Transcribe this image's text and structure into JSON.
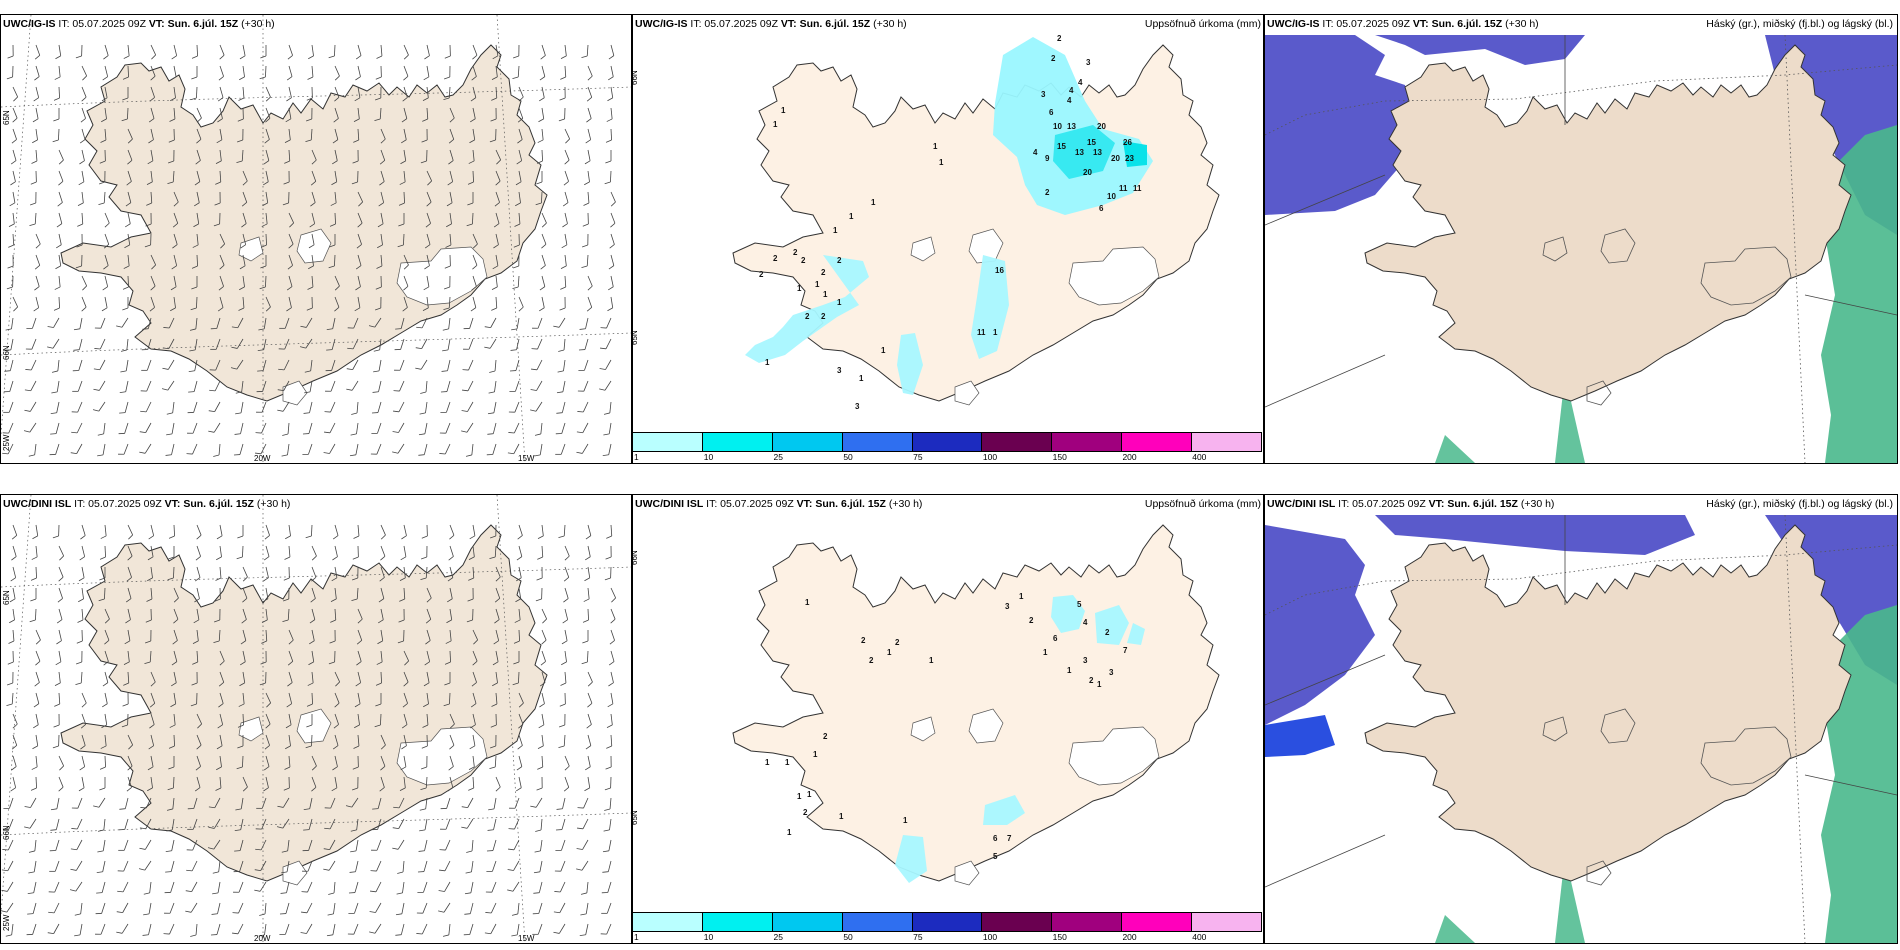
{
  "rows": [
    {
      "model": "UWC/IG-IS",
      "panels": [
        {
          "it": "IT: 05.07.2025 09Z",
          "vt": "VT: Sun. 6.júl. 15Z",
          "lead": "(+30 h)",
          "product": ""
        },
        {
          "it": "IT: 05.07.2025 09Z",
          "vt": "VT: Sun. 6.júl. 15Z",
          "lead": "(+30 h)",
          "product": "Uppsöfnuð úrkoma (mm)"
        },
        {
          "it": "IT: 05.07.2025 09Z",
          "vt": "VT: Sun. 6.júl. 15Z",
          "lead": "(+30 h)",
          "product": "Háský (gr.), miðský (fj.bl.) og lágský (bl.)"
        }
      ],
      "precip_numbers": [
        "2",
        "2",
        "3",
        "4",
        "4",
        "4",
        "6",
        "3",
        "10",
        "13",
        "20",
        "15",
        "26",
        "4",
        "9",
        "15",
        "13",
        "13",
        "23",
        "20",
        "20",
        "2",
        "10",
        "11",
        "11",
        "6",
        "1",
        "1",
        "1",
        "1",
        "1",
        "1",
        "1",
        "2",
        "2",
        "2",
        "2",
        "2",
        "2",
        "1",
        "1",
        "1",
        "2",
        "2",
        "1",
        "1",
        "3",
        "1",
        "3",
        "1",
        "16",
        "11",
        "1"
      ]
    },
    {
      "model": "UWC/DINI ISL",
      "panels": [
        {
          "it": "IT: 05.07.2025 09Z",
          "vt": "VT: Sun. 6.júl. 15Z",
          "lead": "(+30 h)",
          "product": ""
        },
        {
          "it": "IT: 05.07.2025 09Z",
          "vt": "VT: Sun. 6.júl. 15Z",
          "lead": "(+30 h)",
          "product": "Uppsöfnuð úrkoma (mm)"
        },
        {
          "it": "IT: 05.07.2025 09Z",
          "vt": "VT: Sun. 6.júl. 15Z",
          "lead": "(+30 h)",
          "product": "Háský (gr.), miðský (fj.bl.) og lágský (bl.)"
        }
      ],
      "precip_numbers": [
        "3",
        "1",
        "5",
        "2",
        "4",
        "6",
        "2",
        "7",
        "1",
        "3",
        "3",
        "1",
        "2",
        "1",
        "2",
        "2",
        "1",
        "2",
        "1",
        "1",
        "1",
        "1",
        "1",
        "2",
        "1",
        "1",
        "2",
        "1",
        "1",
        "1",
        "6",
        "7",
        "5"
      ]
    }
  ],
  "wind_axes": {
    "lon_labels": [
      "20W",
      "15W"
    ],
    "lat_labels": [
      "65N",
      "66N",
      "25W"
    ]
  },
  "precip_axes": {
    "lat_labels": [
      "66N",
      "65N"
    ]
  },
  "colorbar": {
    "ticks": [
      "1",
      "10",
      "25",
      "50",
      "75",
      "100",
      "150",
      "200",
      "400"
    ],
    "colors": [
      "#b9ffff",
      "#00f0f0",
      "#00c8f0",
      "#2f6ff0",
      "#1c2bbf",
      "#6a0050",
      "#a0007e",
      "#ff00bb",
      "#f7b3ef"
    ]
  },
  "colors": {
    "land_wind": "#f1e6d8",
    "land_precip": "#fdf1e4",
    "land_cloud": "#eddcca",
    "high_cloud": "#5a5acb",
    "mid_cloud": "#49b88c",
    "low_cloud": "#2a4fe0"
  }
}
